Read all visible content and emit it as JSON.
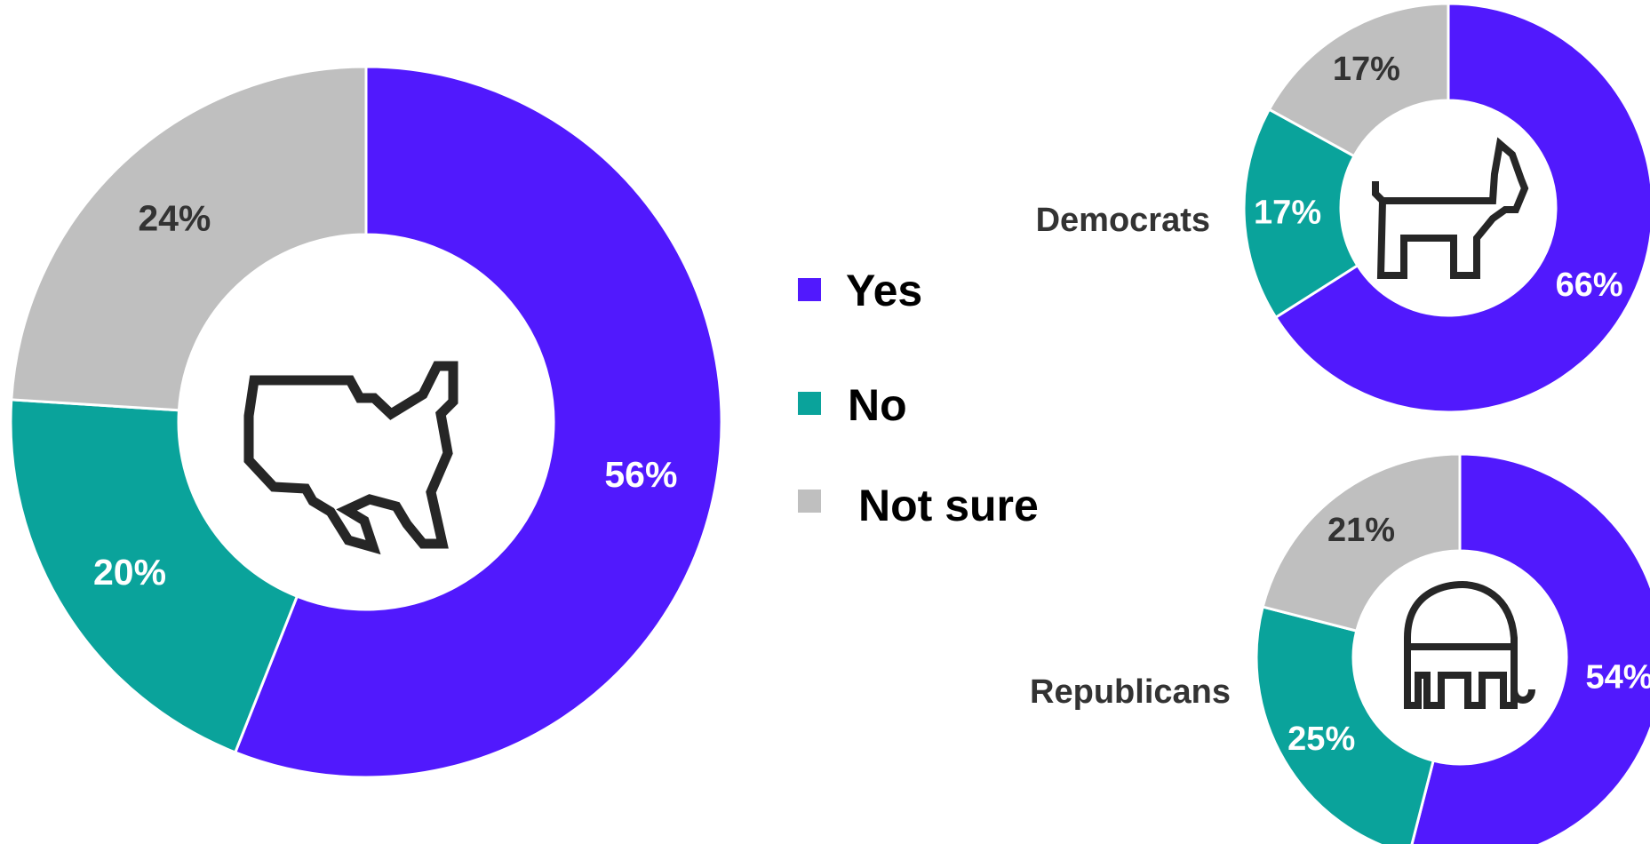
{
  "colors": {
    "yes": "#5119fd",
    "no": "#0aa39b",
    "not_sure": "#bfbfbf",
    "icon": "#262626",
    "label_dark": "#333333",
    "label_light": "#ffffff"
  },
  "legend": [
    {
      "key": "yes",
      "label": "Yes"
    },
    {
      "key": "no",
      "label": "No"
    },
    {
      "key": "not_sure",
      "label": "Not sure"
    }
  ],
  "chart_data": [
    {
      "type": "pie",
      "variant": "donut",
      "icon": "usa-map-icon",
      "group_label": "",
      "categories": [
        "Yes",
        "No",
        "Not sure"
      ],
      "values": [
        56,
        20,
        24
      ],
      "labels": [
        "56%",
        "20%",
        "24%"
      ]
    },
    {
      "type": "pie",
      "variant": "donut",
      "icon": "donkey-icon",
      "group_label": "Democrats",
      "categories": [
        "Yes",
        "No",
        "Not sure"
      ],
      "values": [
        66,
        17,
        17
      ],
      "labels": [
        "66%",
        "17%",
        "17%"
      ]
    },
    {
      "type": "pie",
      "variant": "donut",
      "icon": "elephant-icon",
      "group_label": "Republicans",
      "categories": [
        "Yes",
        "No",
        "Not sure"
      ],
      "values": [
        54,
        25,
        21
      ],
      "labels": [
        "54%",
        "25%",
        "21%"
      ]
    }
  ]
}
